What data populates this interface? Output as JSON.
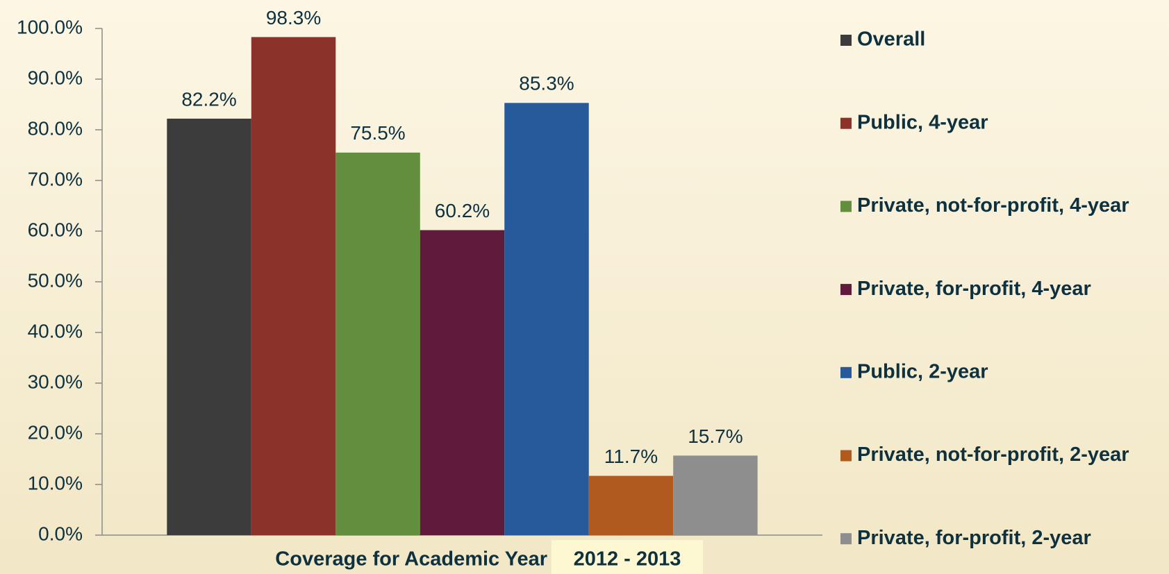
{
  "chart_data": {
    "type": "bar",
    "x_label": "Coverage for Academic Year",
    "categories": [
      "2012 - 2013"
    ],
    "series": [
      {
        "name": "Overall",
        "color": "#3c3c3c",
        "values": [
          82.2
        ],
        "value_labels": [
          "82.2%"
        ]
      },
      {
        "name": "Public, 4-year",
        "color": "#8b332b",
        "values": [
          98.3
        ],
        "value_labels": [
          "98.3%"
        ]
      },
      {
        "name": "Private, not-for-profit, 4-year",
        "color": "#628e3d",
        "values": [
          75.5
        ],
        "value_labels": [
          "75.5%"
        ]
      },
      {
        "name": "Private, for-profit, 4-year",
        "color": "#5e1b3b",
        "values": [
          60.2
        ],
        "value_labels": [
          "60.2%"
        ]
      },
      {
        "name": "Public, 2-year",
        "color": "#275a9a",
        "values": [
          85.3
        ],
        "value_labels": [
          "85.3%"
        ]
      },
      {
        "name": "Private, not-for-profit, 2-year",
        "color": "#b05a20",
        "values": [
          11.7
        ],
        "value_labels": [
          "11.7%"
        ]
      },
      {
        "name": "Private, for-profit, 2-year",
        "color": "#8e8e8e",
        "values": [
          15.7
        ],
        "value_labels": [
          "15.7%"
        ]
      }
    ],
    "ylim": [
      0,
      100
    ],
    "yticks": [
      {
        "value": 0,
        "label": "0.0%"
      },
      {
        "value": 10,
        "label": "10.0%"
      },
      {
        "value": 20,
        "label": "20.0%"
      },
      {
        "value": 30,
        "label": "30.0%"
      },
      {
        "value": 40,
        "label": "40.0%"
      },
      {
        "value": 50,
        "label": "50.0%"
      },
      {
        "value": 60,
        "label": "60.0%"
      },
      {
        "value": 70,
        "label": "70.0%"
      },
      {
        "value": 80,
        "label": "80.0%"
      },
      {
        "value": 90,
        "label": "90.0%"
      },
      {
        "value": 100,
        "label": "100.0%"
      }
    ],
    "grid": false,
    "legend": "right"
  }
}
